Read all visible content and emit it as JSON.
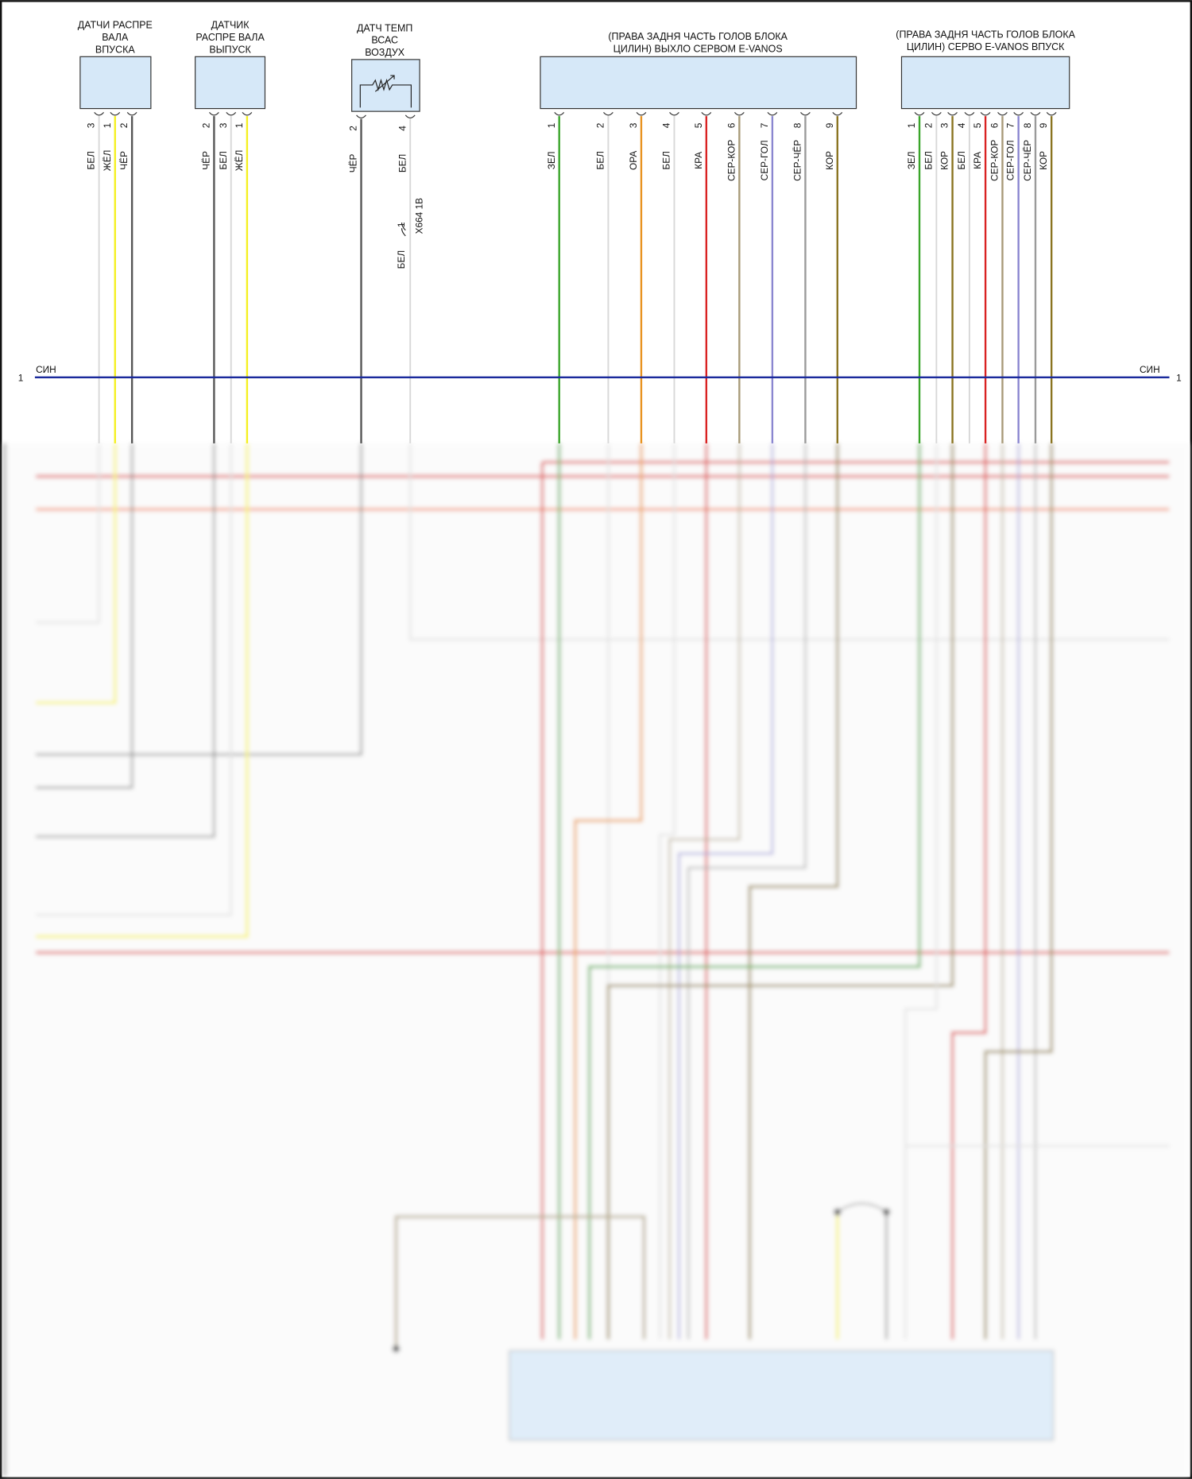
{
  "wire_colors": {
    "ЗЕЛ": "#3aa52a",
    "БЕЛ": "#d8d8d8",
    "ЖЁЛ": "#f5f020",
    "ЧЁР": "#555555",
    "ОРА": "#e8921e",
    "КРА": "#d92222",
    "СЕР-КОР": "#a89a78",
    "СЕР-ГОЛ": "#8a86d0",
    "СЕР-ЧЁР": "#9a9a9a",
    "КОР": "#8a7420",
    "СИН": "#1a2a9c"
  },
  "connectors": [
    {
      "title": [
        "ДАТЧИ РАСПРЕ",
        "ВАЛА",
        "ВПУСКА"
      ],
      "pins": [
        {
          "num": "3",
          "label": "БЕЛ"
        },
        {
          "num": "1",
          "label": "ЖЁЛ"
        },
        {
          "num": "2",
          "label": "ЧЁР"
        }
      ]
    },
    {
      "title": [
        "ДАТЧИК",
        "РАСПРЕ ВАЛА",
        "ВЫПУСК"
      ],
      "pins": [
        {
          "num": "2",
          "label": "ЧЁР"
        },
        {
          "num": "3",
          "label": "БЕЛ"
        },
        {
          "num": "1",
          "label": "ЖЁЛ"
        }
      ]
    },
    {
      "title": [
        "ДАТЧ ТЕМП",
        "ВСАС",
        "ВОЗДУХ"
      ],
      "pins": [
        {
          "num": "2",
          "label": "ЧЁР"
        },
        {
          "num": "4",
          "label": "БЕЛ"
        }
      ]
    },
    {
      "title": [
        "(ПРАВА ЗАДНЯ ЧАСТЬ ГОЛОВ БЛОКА",
        "ЦИЛИН) ВЫХЛО СЕРВОМ E-VANOS"
      ],
      "pins": [
        {
          "num": "1",
          "label": "ЗЕЛ"
        },
        {
          "num": "2",
          "label": "БЕЛ"
        },
        {
          "num": "3",
          "label": "ОРА"
        },
        {
          "num": "4",
          "label": "БЕЛ"
        },
        {
          "num": "5",
          "label": "КРА"
        },
        {
          "num": "6",
          "label": "СЕР-КОР"
        },
        {
          "num": "7",
          "label": "СЕР-ГОЛ"
        },
        {
          "num": "8",
          "label": "СЕР-ЧЁР"
        },
        {
          "num": "9",
          "label": "КОР"
        }
      ]
    },
    {
      "title": [
        "(ПРАВА ЗАДНЯ ЧАСТЬ ГОЛОВ БЛОКА",
        "ЦИЛИН) СЕРВО E-VANOS ВПУСК"
      ],
      "pins": [
        {
          "num": "1",
          "label": "ЗЕЛ"
        },
        {
          "num": "2",
          "label": "БЕЛ"
        },
        {
          "num": "3",
          "label": "КОР"
        },
        {
          "num": "4",
          "label": "БЕЛ"
        },
        {
          "num": "5",
          "label": "КРА"
        },
        {
          "num": "6",
          "label": "СЕР-КОР"
        },
        {
          "num": "7",
          "label": "СЕР-ГОЛ"
        },
        {
          "num": "8",
          "label": "СЕР-ЧЁР"
        },
        {
          "num": "9",
          "label": "КОР"
        }
      ]
    }
  ],
  "inline_connector": {
    "name": "X664 1B",
    "pin": "1",
    "wire_label": "БЕЛ"
  },
  "bus": {
    "label": "СИН",
    "left_num": "1",
    "right_num": "1"
  }
}
